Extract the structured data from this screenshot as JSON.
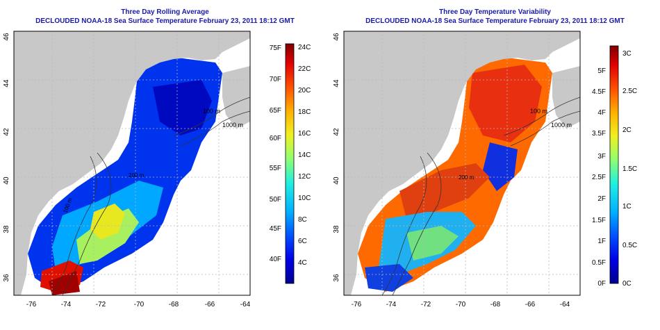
{
  "colors": {
    "land": "#c8c8c8",
    "title": "#1a1aa8",
    "grid": "#b8b8b8",
    "scale": [
      "#00008f",
      "#0000e8",
      "#0050ff",
      "#00b0ff",
      "#20f0e0",
      "#90ff70",
      "#f0f020",
      "#ffb000",
      "#ff5000",
      "#e00000",
      "#800000"
    ]
  },
  "panels": [
    {
      "title_line1": "Three Day Rolling Average",
      "title_line2": "DECLOUDED NOAA-18 Sea Surface Temperature February 23, 2011 18:12 GMT",
      "lon_ticks": [
        "-76",
        "-74",
        "-72",
        "-70",
        "-68",
        "-66",
        "-64"
      ],
      "lat_ticks": [
        "36",
        "38",
        "40",
        "42",
        "44",
        "46"
      ],
      "contour_labels": [
        "100 m",
        "1000 m",
        "200 m",
        "100 m"
      ],
      "colorbar_left_labels": [
        "75F",
        "70F",
        "65F",
        "60F",
        "55F",
        "50F",
        "45F",
        "40F"
      ],
      "colorbar_right_labels": [
        "24C",
        "22C",
        "20C",
        "18C",
        "16C",
        "14C",
        "12C",
        "10C",
        "8C",
        "6C",
        "4C"
      ]
    },
    {
      "title_line1": "Three Day Temperature Variability",
      "title_line2": "DECLOUDED NOAA-18 Sea Surface Temperature February 23, 2011 18:12 GMT",
      "lon_ticks": [
        "-76",
        "-74",
        "-72",
        "-70",
        "-68",
        "-66",
        "-64"
      ],
      "lat_ticks": [
        "36",
        "38",
        "40",
        "42",
        "44",
        "46"
      ],
      "contour_labels": [
        "100 m",
        "1000 m",
        "200 m"
      ],
      "colorbar_left_labels": [
        "5F",
        "4.5F",
        "4F",
        "3.5F",
        "3F",
        "2.5F",
        "2F",
        "1.5F",
        "1F",
        "0.5F",
        "0F"
      ],
      "colorbar_right_labels": [
        "3C",
        "2.5C",
        "2C",
        "1.5C",
        "1C",
        "0.5C",
        "0C"
      ]
    }
  ]
}
